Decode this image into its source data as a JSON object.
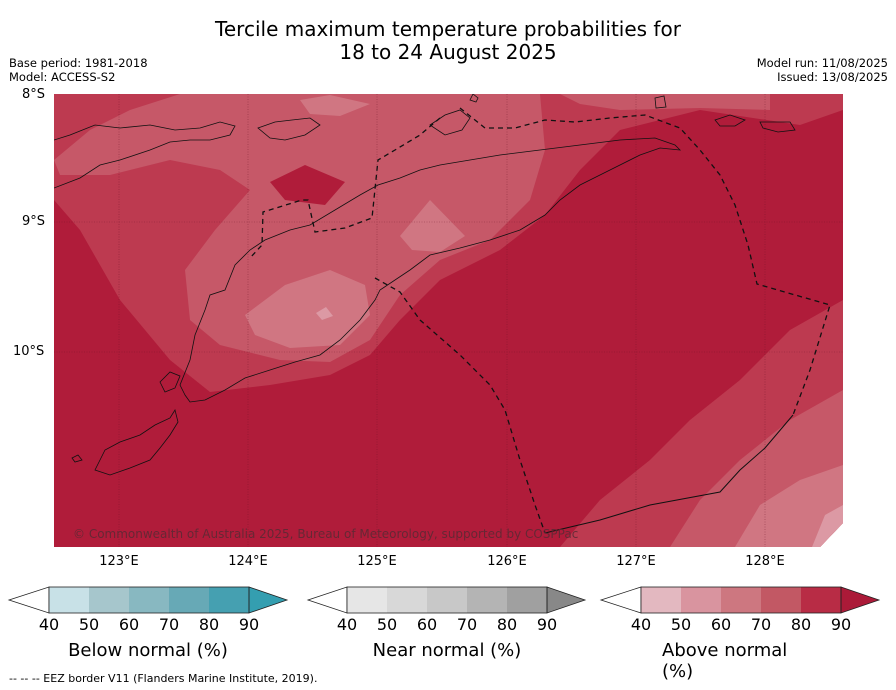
{
  "title_line1": "Tercile maximum temperature probabilities for",
  "title_line2": "18 to 24 August 2025",
  "base_period": "Base period: 1981-2018",
  "model": "Model: ACCESS-S2",
  "model_run": "Model run: 11/08/2025",
  "issued": "Issued: 13/08/2025",
  "lat_labels": [
    "8°S",
    "9°S",
    "10°S"
  ],
  "lon_labels": [
    "123°E",
    "124°E",
    "125°E",
    "126°E",
    "127°E",
    "128°E"
  ],
  "copyright": "© Commonwealth of Australia 2025, Bureau of Meteorology, supported by COSPPac",
  "legend": {
    "below": {
      "label": "Below normal (%)",
      "ticks": [
        "40",
        "50",
        "60",
        "70",
        "80",
        "90"
      ],
      "colors": [
        "#c8e1e7",
        "#a6c6cc",
        "#88b8c1",
        "#67a9b6",
        "#45a0b1"
      ],
      "arrow": "#349eb0"
    },
    "near": {
      "label": "Near normal (%)",
      "ticks": [
        "40",
        "50",
        "60",
        "70",
        "80",
        "90"
      ],
      "colors": [
        "#e6e6e6",
        "#d8d8d8",
        "#c8c8c8",
        "#b4b4b4",
        "#a0a0a0"
      ],
      "arrow": "#888888"
    },
    "above": {
      "label": "Above normal (%)",
      "ticks": [
        "40",
        "50",
        "60",
        "70",
        "80",
        "90"
      ],
      "colors": [
        "#e3b8c0",
        "#d9949f",
        "#cd7780",
        "#c25864",
        "#b82c45"
      ],
      "arrow": "#ab1a38"
    }
  },
  "footer": "--  --  -- EEZ border V11 (Flanders Marine Institute, 2019).",
  "chart_data": {
    "type": "heatmap",
    "variable": "Tercile maximum temperature probabilities",
    "period": "18 to 24 August 2025",
    "lat_range": [
      "8°S",
      "11.5°S"
    ],
    "lon_range": [
      "122.5°E",
      "128.6°E"
    ],
    "dominant_category": "Above normal",
    "dominant_probability_range_pct": [
      80,
      90
    ]
  }
}
